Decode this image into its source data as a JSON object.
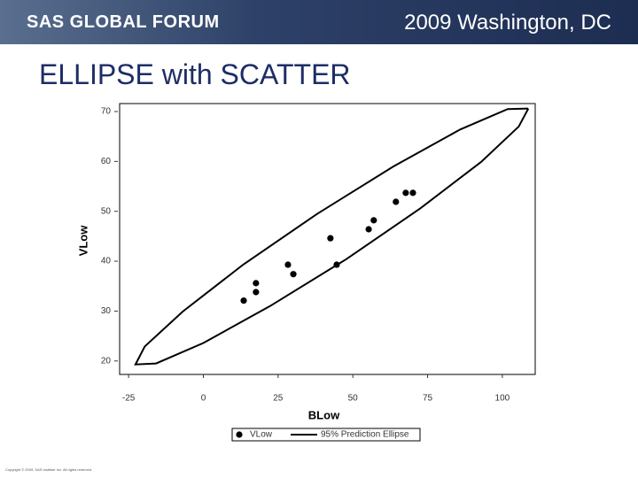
{
  "header": {
    "brand": "SAS GLOBAL FORUM",
    "event": "2009 Washington, DC"
  },
  "slide_title": "ELLIPSE with SCATTER",
  "footer": "Copyright © 2009, SAS Institute Inc. All rights reserved.",
  "chart_data": {
    "type": "scatter",
    "x_label": "BLow",
    "y_label": "VLow",
    "xlim": [
      -28,
      111
    ],
    "ylim": [
      17.3,
      71.6
    ],
    "xticks": [
      -25,
      0,
      25,
      50,
      75,
      100
    ],
    "yticks": [
      20,
      30,
      40,
      50,
      60,
      70
    ],
    "grid": false,
    "legend": "bottom",
    "series": [
      {
        "name": "VLow",
        "color": "#000000",
        "style": "markers",
        "x": [
          13.5,
          17.6,
          17.6,
          28.3,
          30.1,
          42.5,
          44.6,
          55.3,
          57.0,
          64.4,
          67.7,
          70.1
        ],
        "y": [
          32.1,
          35.6,
          33.8,
          39.3,
          37.4,
          44.6,
          39.3,
          46.4,
          48.2,
          51.9,
          53.7,
          53.7
        ]
      },
      {
        "name": "95% Prediction Ellipse",
        "color": "#000000",
        "style": "line",
        "x": [
          108.7,
          105.5,
          92.9,
          72.6,
          47.8,
          22.3,
          0.0,
          -15.8,
          -22.7,
          -19.6,
          -6.9,
          13.3,
          38.1,
          63.6,
          85.9,
          101.8,
          108.7
        ],
        "y": [
          70.6,
          67.0,
          59.9,
          50.6,
          40.4,
          31.0,
          23.6,
          19.5,
          19.3,
          22.9,
          29.9,
          39.3,
          49.5,
          59.0,
          66.4,
          70.5,
          70.6
        ]
      }
    ]
  }
}
